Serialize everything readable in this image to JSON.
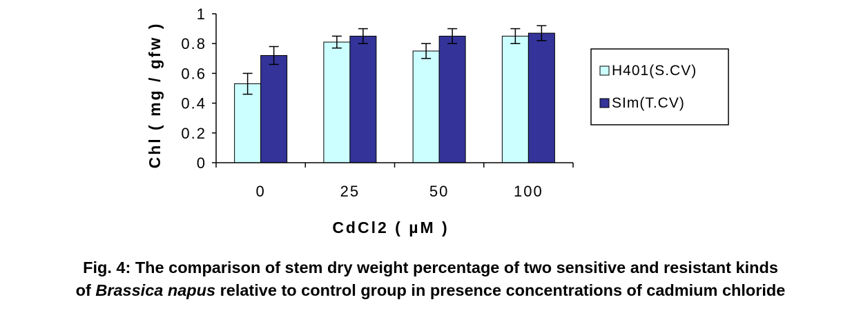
{
  "chart_data": {
    "type": "bar",
    "categories": [
      "0",
      "25",
      "50",
      "100"
    ],
    "series": [
      {
        "name": "H401(S.CV)",
        "color": "#ccffff",
        "values": [
          0.53,
          0.81,
          0.75,
          0.85
        ],
        "errors": [
          0.07,
          0.04,
          0.05,
          0.05
        ]
      },
      {
        "name": "SIm(T.CV)",
        "color": "#333399",
        "values": [
          0.72,
          0.85,
          0.85,
          0.87
        ],
        "errors": [
          0.06,
          0.05,
          0.05,
          0.05
        ]
      }
    ],
    "xlabel": "CdCl2 ( µM )",
    "ylabel": "Chl ( mg / gfw )",
    "ylim": [
      0,
      1
    ],
    "yticks": [
      "0",
      "0.2",
      "0.4",
      "0.6",
      "0.8",
      "1"
    ],
    "grid": false,
    "legend_position": "right"
  },
  "caption": {
    "line1": "Fig. 4: The comparison of stem dry weight percentage of two sensitive and resistant kinds",
    "line2_prefix": "of ",
    "line2_italic": "Brassica napus",
    "line2_suffix": " relative to control group in presence concentrations of cadmium chloride"
  }
}
